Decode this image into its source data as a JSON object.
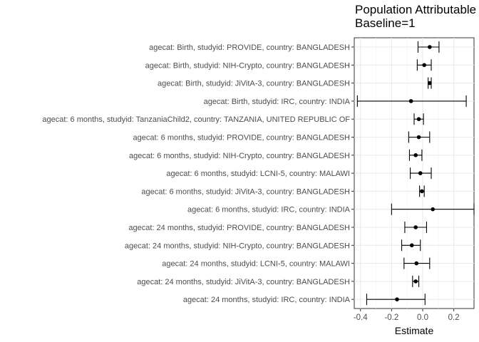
{
  "chart_data": {
    "type": "forest",
    "title_lines": [
      "Population Attributable",
      "Baseline=1"
    ],
    "xlabel": "Estimate",
    "ylabel": "",
    "xlim": [
      -0.44,
      0.33
    ],
    "x_ticks": [
      -0.4,
      -0.2,
      0.0,
      0.2
    ],
    "x_tick_labels": [
      "-0.4",
      "-0.2",
      "0.0",
      "0.2"
    ],
    "grid": true,
    "legend": "none",
    "point_color": "#000000",
    "rows": [
      {
        "label": "agecat: Birth, studyid: PROVIDE, country: BANGLADESH",
        "estimate": 0.045,
        "lower": -0.03,
        "upper": 0.105
      },
      {
        "label": "agecat: Birth, studyid: NIH-Crypto, country: BANGLADESH",
        "estimate": 0.01,
        "lower": -0.035,
        "upper": 0.055
      },
      {
        "label": "agecat: Birth, studyid: JiVitA-3, country: BANGLADESH",
        "estimate": 0.045,
        "lower": 0.035,
        "upper": 0.055
      },
      {
        "label": "agecat: Birth, studyid: IRC, country: INDIA",
        "estimate": -0.075,
        "lower": -0.42,
        "upper": 0.28
      },
      {
        "label": "agecat: 6 months, studyid: TanzaniaChild2, country: TANZANIA, UNITED REPUBLIC OF",
        "estimate": -0.025,
        "lower": -0.055,
        "upper": 0.005
      },
      {
        "label": "agecat: 6 months, studyid: PROVIDE, country: BANGLADESH",
        "estimate": -0.025,
        "lower": -0.09,
        "upper": 0.045
      },
      {
        "label": "agecat: 6 months, studyid: NIH-Crypto, country: BANGLADESH",
        "estimate": -0.045,
        "lower": -0.085,
        "upper": -0.005
      },
      {
        "label": "agecat: 6 months, studyid: LCNI-5, country: MALAWI",
        "estimate": -0.015,
        "lower": -0.08,
        "upper": 0.055
      },
      {
        "label": "agecat: 6 months, studyid: JiVitA-3, country: BANGLADESH",
        "estimate": -0.005,
        "lower": -0.02,
        "upper": 0.01
      },
      {
        "label": "agecat: 6 months, studyid: IRC, country: INDIA",
        "estimate": 0.065,
        "lower": -0.2,
        "upper": 0.33
      },
      {
        "label": "agecat: 24 months, studyid: PROVIDE, country: BANGLADESH",
        "estimate": -0.045,
        "lower": -0.115,
        "upper": 0.025
      },
      {
        "label": "agecat: 24 months, studyid: NIH-Crypto, country: BANGLADESH",
        "estimate": -0.07,
        "lower": -0.135,
        "upper": -0.015
      },
      {
        "label": "agecat: 24 months, studyid: LCNI-5, country: MALAWI",
        "estimate": -0.04,
        "lower": -0.12,
        "upper": 0.045
      },
      {
        "label": "agecat: 24 months, studyid: JiVitA-3, country: BANGLADESH",
        "estimate": -0.045,
        "lower": -0.065,
        "upper": -0.025
      },
      {
        "label": "agecat: 24 months, studyid: IRC, country: INDIA",
        "estimate": -0.165,
        "lower": -0.36,
        "upper": 0.015
      }
    ]
  }
}
